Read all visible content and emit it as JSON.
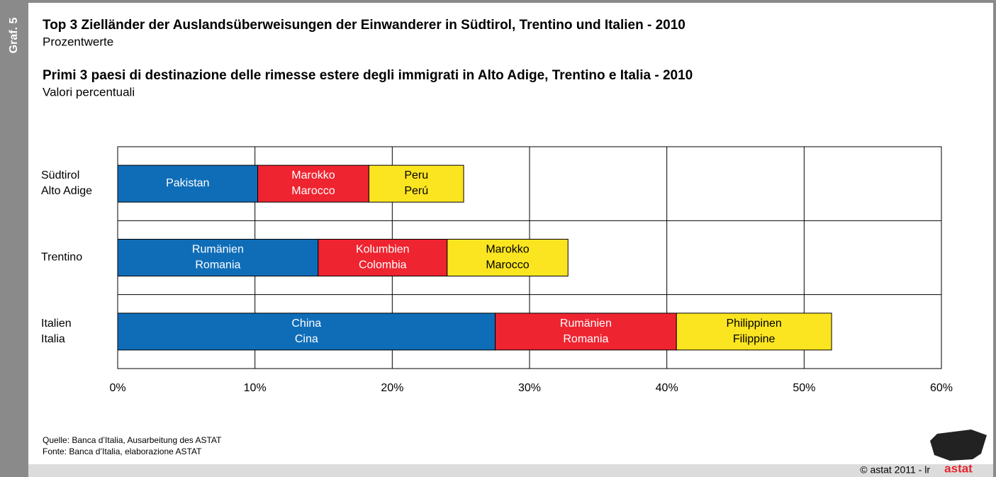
{
  "graf_label": "Graf. 5",
  "chart_data": {
    "type": "stacked_barh",
    "titles": [
      {
        "title": "Top 3 Zielländer der Auslandsüberweisungen der Einwanderer in Südtirol, Trentino und Italien - 2010",
        "subtitle": "Prozentwerte"
      },
      {
        "title": "Primi 3 paesi di destinazione delle rimesse estere degli immigrati in Alto Adige, Trentino e Italia - 2010",
        "subtitle": "Valori percentuali"
      }
    ],
    "categories": [
      [
        "Südtirol",
        "Alto Adige"
      ],
      [
        "Trentino"
      ],
      [
        "Italien",
        "Italia"
      ]
    ],
    "series": [
      {
        "color": "#0f6db8",
        "label_color": "#ffffff",
        "values": [
          10.2,
          14.6,
          27.5
        ],
        "labels": [
          [
            "Pakistan"
          ],
          [
            "Rumänien",
            "Romania"
          ],
          [
            "China",
            "Cina"
          ]
        ]
      },
      {
        "color": "#ee2430",
        "label_color": "#ffffff",
        "values": [
          8.1,
          9.4,
          13.2
        ],
        "labels": [
          [
            "Marokko",
            "Marocco"
          ],
          [
            "Kolumbien",
            "Colombia"
          ],
          [
            "Rumänien",
            "Romania"
          ]
        ]
      },
      {
        "color": "#fbe521",
        "label_color": "#000000",
        "values": [
          6.9,
          8.8,
          11.3
        ],
        "labels": [
          [
            "Peru",
            "Perú"
          ],
          [
            "Marokko",
            "Marocco"
          ],
          [
            "Philippinen",
            "Filippine"
          ]
        ]
      }
    ],
    "xlim": [
      0,
      60
    ],
    "xticks": [
      {
        "value": 0,
        "label": "0%"
      },
      {
        "value": 10,
        "label": "10%"
      },
      {
        "value": 20,
        "label": "20%"
      },
      {
        "value": 30,
        "label": "30%"
      },
      {
        "value": 40,
        "label": "40%"
      },
      {
        "value": 50,
        "label": "50%"
      },
      {
        "value": 60,
        "label": "60%"
      }
    ],
    "grid": true,
    "source": [
      "Quelle: Banca d’Italia, Ausarbeitung des ASTAT",
      "Fonte: Banca d’Italia, elaborazione ASTAT"
    ]
  },
  "footer": {
    "copyright": "© astat 2011 - lr",
    "logo": "astat"
  }
}
